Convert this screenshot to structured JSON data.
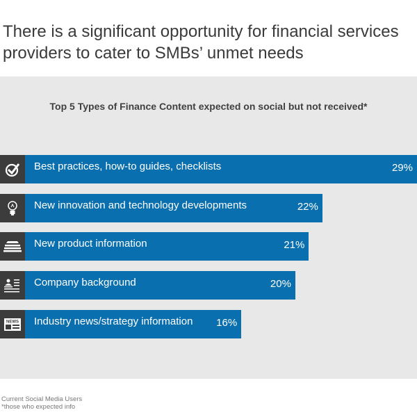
{
  "title_lines": [
    "There is a significant opportunity for financial services",
    "providers to cater to SMBs’ unmet needs"
  ],
  "footnotes": [
    "Current Social Media Users",
    "*those who expected info"
  ],
  "colors": {
    "bar": "#0a6fae",
    "icon_bg": "#3c3c3c",
    "panel": "#e8e8e8"
  },
  "chart_data": {
    "type": "bar",
    "orientation": "horizontal",
    "title": "Top 5 Types of Finance Content expected on social but not received*",
    "categories": [
      "Best practices, how-to guides, checklists",
      "New innovation and technology developments",
      "New product information",
      "Company background",
      "Industry news/strategy information"
    ],
    "values": [
      29,
      22,
      21,
      20,
      16
    ],
    "value_labels": [
      "29%",
      "22%",
      "21%",
      "20%",
      "16%"
    ],
    "icons": [
      "checkmark-icon",
      "lightbulb-icon",
      "stacked-papers-icon",
      "person-document-icon",
      "newspaper-icon"
    ],
    "unit": "%"
  }
}
